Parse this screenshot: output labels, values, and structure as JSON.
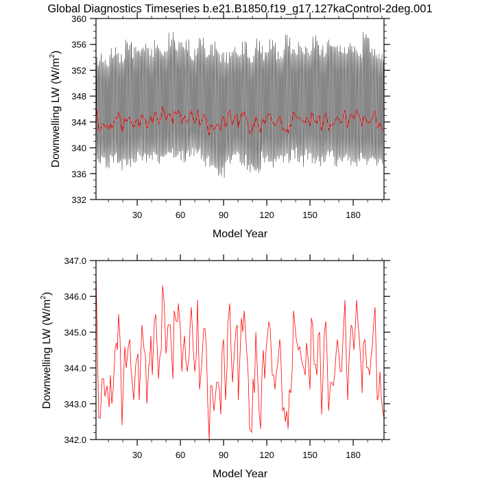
{
  "title": "Global Diagnostics Timeseries b.e21.B1850.f19_g17.127kaControl-2deg.001",
  "colors": {
    "monthly": "#000000",
    "annual": "#ff0000",
    "axes": "#000000"
  },
  "chart_data": [
    {
      "type": "line",
      "xlabel": "Model Year",
      "ylabel": "Downwelling LW (W/m",
      "ylabel_sup": "2",
      "ylabel_close": ")",
      "xlim": [
        1.4,
        201.4
      ],
      "ylim": [
        332,
        360
      ],
      "xticks": [
        30,
        60,
        90,
        120,
        150,
        180
      ],
      "xtick_labels": [
        "30",
        "60",
        "90",
        "120",
        "150",
        "180"
      ],
      "x_minor_step": 10,
      "yticks": [
        332,
        336,
        340,
        344,
        348,
        352,
        356,
        360
      ],
      "ytick_labels": [
        "332",
        "336",
        "340",
        "344",
        "348",
        "352",
        "356",
        "360"
      ],
      "y_minor_step": 1,
      "grid": false,
      "series": [
        {
          "kind": "monthly",
          "color": "#000000",
          "envelope_block_years": 5,
          "seasonal_max": [
            355,
            354.5,
            356,
            355,
            357.5,
            356,
            356.5,
            355.5,
            357,
            356,
            358,
            356.5,
            357,
            355.5,
            357,
            356,
            356.5,
            355,
            355.5,
            356,
            356.5,
            355,
            357,
            356,
            357,
            355.5,
            357.5,
            356,
            356.5,
            356,
            357.5,
            356,
            357,
            356.5,
            356,
            357,
            355.5,
            358.5,
            356,
            355
          ],
          "seasonal_min": [
            337,
            336.5,
            337.5,
            336.5,
            337,
            337.5,
            338,
            337,
            337.5,
            337.5,
            338,
            338,
            337.5,
            338.5,
            338,
            337,
            336.5,
            335,
            337,
            337.5,
            337,
            336,
            335.5,
            337.5,
            336.5,
            337,
            337.5,
            338,
            337,
            338,
            337.5,
            337,
            338,
            337,
            337.5,
            337,
            337,
            336.5,
            337,
            336.5
          ]
        },
        {
          "kind": "annual",
          "color": "#ff0000",
          "values_from": "annual_mean"
        }
      ]
    },
    {
      "type": "line",
      "xlabel": "Model Year",
      "ylabel": "Downwelling LW (W/m",
      "ylabel_sup": "2",
      "ylabel_close": ")",
      "xlim": [
        1.4,
        201.4
      ],
      "ylim": [
        342,
        347
      ],
      "xticks": [
        30,
        60,
        90,
        120,
        150,
        180
      ],
      "xtick_labels": [
        "30",
        "60",
        "90",
        "120",
        "150",
        "180"
      ],
      "x_minor_step": 10,
      "yticks": [
        342,
        343,
        344,
        345,
        346,
        347
      ],
      "ytick_labels": [
        "342.0",
        "343.0",
        "344.0",
        "345.0",
        "346.0",
        "347.0"
      ],
      "y_minor_step": 0.2,
      "grid": false,
      "series": [
        {
          "kind": "annual",
          "color": "#ff0000",
          "values_from": "annual_mean"
        }
      ]
    }
  ],
  "annual_mean": {
    "x": [
      1.4,
      3.3,
      4.3,
      5.7,
      6.7,
      7.6,
      9.0,
      10.5,
      11.4,
      12.4,
      13.3,
      14.8,
      15.7,
      16.2,
      17.1,
      18.1,
      19.5,
      20.5,
      21.4,
      22.4,
      23.8,
      24.8,
      25.7,
      27.6,
      29.0,
      30.5,
      31.4,
      33.3,
      34.8,
      35.7,
      36.7,
      38.1,
      38.6,
      39.5,
      40.5,
      41.9,
      42.9,
      44.8,
      45.7,
      46.7,
      47.6,
      48.6,
      50.0,
      50.5,
      51.4,
      52.9,
      54.8,
      55.7,
      57.1,
      58.1,
      58.6,
      60.0,
      61.0,
      61.9,
      62.9,
      63.8,
      64.8,
      66.2,
      66.7,
      67.6,
      69.0,
      70.0,
      71.0,
      71.9,
      73.3,
      73.8,
      74.8,
      76.2,
      77.1,
      78.1,
      79.0,
      80.0,
      81.0,
      81.9,
      83.3,
      84.3,
      85.2,
      86.2,
      87.1,
      88.1,
      89.0,
      90.0,
      91.4,
      92.4,
      92.9,
      94.3,
      95.2,
      96.2,
      97.1,
      98.6,
      99.5,
      100.2,
      102.4,
      103.3,
      104.3,
      105.7,
      107.1,
      108.1,
      109.5,
      110.5,
      111.4,
      112.4,
      113.8,
      114.8,
      115.7,
      116.7,
      117.6,
      118.6,
      119.5,
      121.4,
      122.4,
      123.8,
      124.8,
      125.7,
      126.7,
      127.6,
      129.0,
      129.5,
      131.0,
      131.9,
      132.9,
      133.8,
      134.8,
      135.7,
      136.7,
      137.6,
      138.6,
      140.0,
      140.5,
      141.9,
      142.9,
      143.8,
      144.8,
      145.7,
      146.7,
      147.6,
      148.6,
      150.0,
      151.0,
      151.9,
      152.9,
      153.8,
      154.8,
      155.7,
      156.7,
      158.1,
      159.0,
      160.0,
      161.0,
      161.9,
      162.9,
      164.3,
      165.2,
      166.2,
      167.1,
      168.1,
      169.0,
      170.0,
      171.0,
      171.9,
      172.9,
      174.3,
      175.2,
      176.2,
      177.1,
      178.6,
      179.5,
      180.5,
      181.4,
      182.4,
      183.3,
      184.3,
      185.7,
      186.2,
      187.1,
      188.1,
      189.5,
      190.5,
      191.4,
      192.4,
      193.3,
      194.3,
      195.2,
      196.7,
      197.6,
      198.6,
      199.5,
      200.5,
      201.4
    ],
    "y": [
      346.7,
      342.6,
      342.6,
      343.7,
      343.7,
      343.2,
      343.5,
      342.9,
      343.8,
      343.0,
      343.4,
      344.6,
      344.7,
      344.5,
      345.5,
      344.8,
      342.4,
      343.7,
      344.6,
      344.0,
      344.6,
      344.8,
      344.0,
      343.1,
      344.1,
      344.4,
      343.1,
      345.2,
      344.5,
      344.4,
      343.0,
      344.1,
      344.1,
      344.9,
      343.8,
      345.3,
      345.5,
      343.7,
      344.3,
      344.5,
      346.3,
      345.9,
      344.4,
      344.6,
      345.2,
      345.2,
      343.7,
      345.6,
      345.3,
      345.3,
      345.8,
      345.1,
      343.9,
      344.5,
      344.9,
      344.2,
      343.9,
      344.4,
      345.2,
      345.7,
      344.5,
      343.9,
      344.3,
      345.9,
      343.4,
      343.6,
      344.1,
      345.1,
      345.1,
      344.5,
      343.0,
      342.0,
      343.5,
      343.5,
      342.8,
      343.2,
      343.6,
      343.6,
      343.4,
      342.7,
      344.5,
      344.8,
      343.1,
      344.0,
      345.2,
      345.8,
      344.5,
      343.6,
      344.2,
      345.1,
      345.2,
      343.1,
      345.4,
      345.0,
      345.6,
      344.7,
      343.8,
      342.3,
      342.2,
      343.7,
      343.3,
      345.0,
      343.6,
      342.7,
      342.3,
      343.9,
      344.5,
      343.7,
      344.5,
      345.3,
      345.1,
      343.8,
      343.8,
      343.4,
      343.9,
      344.1,
      344.8,
      344.6,
      342.8,
      342.9,
      342.5,
      342.8,
      342.3,
      343.4,
      343.3,
      343.9,
      345.6,
      345.0,
      344.8,
      344.5,
      344.6,
      344.3,
      344.1,
      344.0,
      343.8,
      344.7,
      344.3,
      343.4,
      345.4,
      345.2,
      344.1,
      344.1,
      343.8,
      344.9,
      345.0,
      342.7,
      343.7,
      345.0,
      345.3,
      344.3,
      342.8,
      343.6,
      343.6,
      343.5,
      343.8,
      344.4,
      344.8,
      344.4,
      343.9,
      343.9,
      344.8,
      345.9,
      344.3,
      343.1,
      344.2,
      345.2,
      345.1,
      344.5,
      345.1,
      345.9,
      345.3,
      344.8,
      343.9,
      343.3,
      344.7,
      344.8,
      344.0,
      344.0,
      343.8,
      344.3,
      344.6,
      345.3,
      345.7,
      343.1,
      343.2,
      343.9,
      343.2,
      342.8,
      342.6
    ]
  }
}
